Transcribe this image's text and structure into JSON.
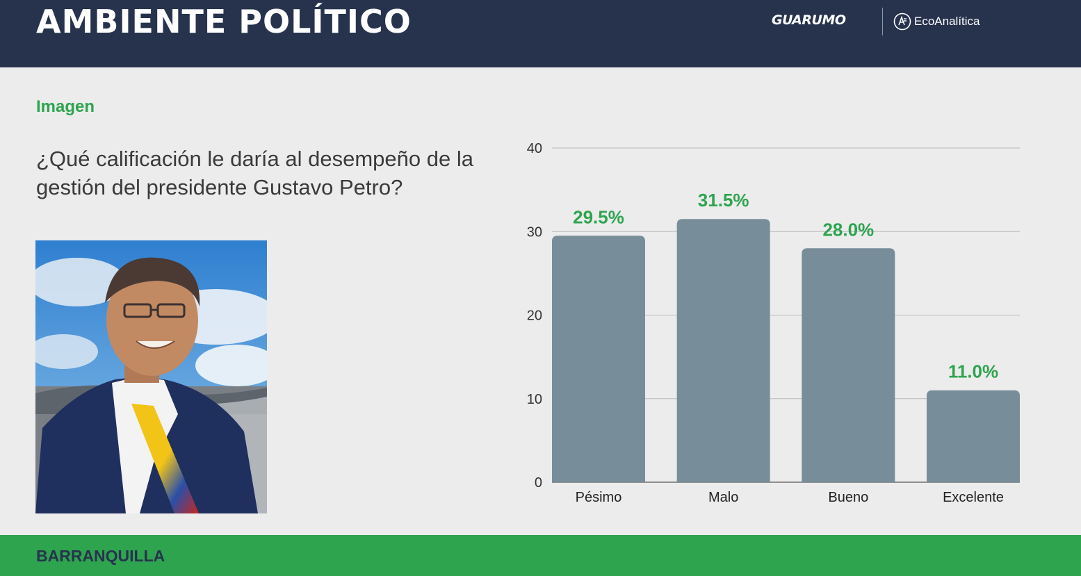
{
  "header": {
    "title": "AMBIENTE POLÍTICO",
    "logo_primary": "GUARUMO",
    "logo_secondary": "EcoAnalítica"
  },
  "section": {
    "label": "Imagen"
  },
  "question": "¿Qué calificación le daría al desempeño de la gestión del presidente Gustavo Petro?",
  "footer": {
    "city": "BARRANQUILLA"
  },
  "colors": {
    "header_bg": "#27334d",
    "accent_green": "#2ea44f",
    "bar": "#788d9a",
    "page_bg": "#ececec"
  },
  "chart_data": {
    "type": "bar",
    "categories": [
      "Pésimo",
      "Malo",
      "Bueno",
      "Excelente"
    ],
    "values": [
      29.5,
      31.5,
      28.0,
      11.0
    ],
    "data_labels": [
      "29.5%",
      "31.5%",
      "28.0%",
      "11.0%"
    ],
    "ylim": [
      0,
      40
    ],
    "yticks": [
      0,
      10,
      20,
      30,
      40
    ],
    "grid": true,
    "legend": "none"
  }
}
